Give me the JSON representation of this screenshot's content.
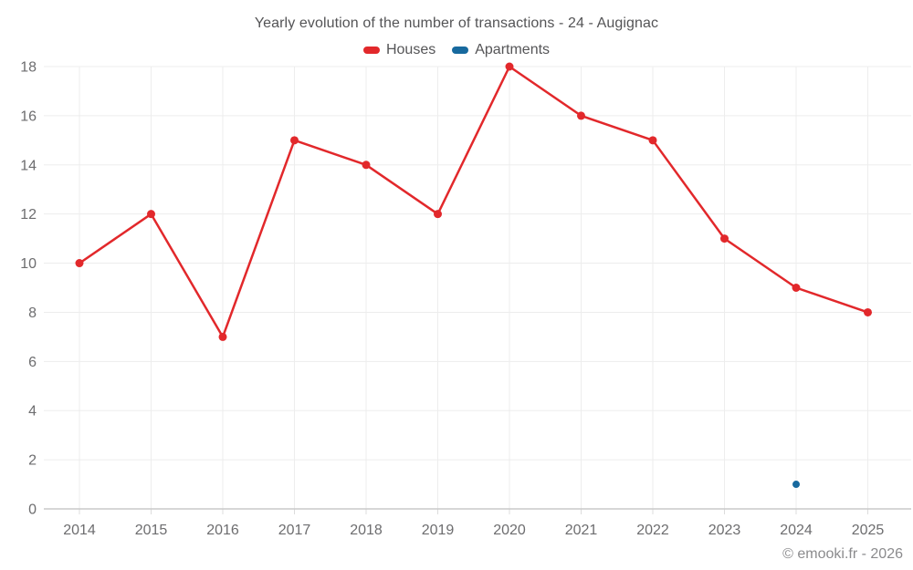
{
  "footer": {
    "copyright": "© emooki.fr - 2026"
  },
  "chart_data": {
    "type": "line",
    "title": "Yearly evolution of the number of transactions - 24 - Augignac",
    "categories": [
      "2014",
      "2015",
      "2016",
      "2017",
      "2018",
      "2019",
      "2020",
      "2021",
      "2022",
      "2023",
      "2024",
      "2025"
    ],
    "series": [
      {
        "name": "Houses",
        "color": "#e2282b",
        "marker_radius": 4.5,
        "values": [
          10,
          12,
          7,
          15,
          14,
          12,
          18,
          16,
          15,
          11,
          9,
          8
        ]
      },
      {
        "name": "Apartments",
        "color": "#17699e",
        "marker_radius": 4,
        "values": [
          null,
          null,
          null,
          null,
          null,
          null,
          null,
          null,
          null,
          null,
          1,
          null
        ]
      }
    ],
    "xlabel": "",
    "ylabel": "",
    "ylim": [
      0,
      18
    ],
    "yticks": [
      0,
      2,
      4,
      6,
      8,
      10,
      12,
      14,
      16,
      18
    ],
    "grid": true,
    "legend_position": "top",
    "grid_color": "#ededed",
    "axis_line_color": "#c9c9c9",
    "tick_mark_color": "#dcdcdc"
  }
}
